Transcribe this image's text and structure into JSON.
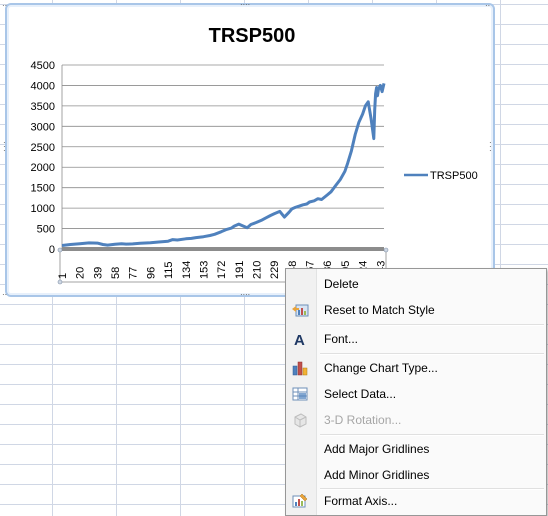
{
  "chart": {
    "title": "TRSP500",
    "legend_label": "TRSP500",
    "series_color": "#4f81bd",
    "y_ticks": [
      "4500",
      "4000",
      "3500",
      "3000",
      "2500",
      "2000",
      "1500",
      "1000",
      "500",
      "0"
    ],
    "x_ticks": [
      "1",
      "20",
      "39",
      "58",
      "77",
      "96",
      "115",
      "134",
      "153",
      "172",
      "191",
      "210",
      "229",
      "248",
      "267",
      "286",
      "305",
      "324",
      "343"
    ]
  },
  "chart_data": {
    "type": "line",
    "title": "TRSP500",
    "xlabel": "",
    "ylabel": "",
    "ylim": [
      0,
      4500
    ],
    "grid": true,
    "legend": "right",
    "series": [
      {
        "name": "TRSP500",
        "x": [
          1,
          10,
          20,
          30,
          39,
          45,
          50,
          58,
          65,
          70,
          77,
          85,
          96,
          105,
          115,
          120,
          125,
          134,
          140,
          145,
          153,
          160,
          165,
          172,
          178,
          183,
          186,
          191,
          195,
          200,
          204,
          210,
          215,
          220,
          225,
          229,
          235,
          240,
          245,
          248,
          252,
          256,
          260,
          264,
          267,
          272,
          276,
          280,
          286,
          290,
          295,
          300,
          305,
          308,
          312,
          316,
          320,
          324,
          327,
          330,
          333,
          336,
          337,
          338,
          339,
          340,
          341,
          343,
          345,
          347
        ],
        "y": [
          85,
          110,
          130,
          150,
          145,
          110,
          95,
          115,
          130,
          120,
          125,
          140,
          155,
          170,
          190,
          230,
          220,
          250,
          260,
          280,
          300,
          330,
          360,
          420,
          480,
          510,
          560,
          610,
          570,
          520,
          600,
          650,
          700,
          760,
          820,
          860,
          920,
          780,
          900,
          980,
          1020,
          1050,
          1080,
          1100,
          1150,
          1180,
          1230,
          1210,
          1320,
          1400,
          1550,
          1700,
          1900,
          2100,
          2400,
          2800,
          3100,
          3300,
          3500,
          3600,
          3200,
          2700,
          3400,
          3800,
          3950,
          3750,
          3900,
          4000,
          3850,
          4050
        ]
      }
    ]
  },
  "menu": {
    "items": [
      {
        "label": "Delete",
        "icon": "none",
        "disabled": false
      },
      {
        "label": "Reset to Match Style",
        "icon": "reset-style-icon",
        "disabled": false
      },
      {
        "label": "Font...",
        "icon": "font-icon",
        "disabled": false
      },
      {
        "label": "Change Chart Type...",
        "icon": "chart-type-icon",
        "disabled": false
      },
      {
        "label": "Select Data...",
        "icon": "select-data-icon",
        "disabled": false
      },
      {
        "label": "3-D Rotation...",
        "icon": "rotation-3d-icon",
        "disabled": true
      },
      {
        "label": "Add Major Gridlines",
        "icon": "none",
        "disabled": false
      },
      {
        "label": "Add Minor Gridlines",
        "icon": "none",
        "disabled": false
      },
      {
        "label": "Format Axis...",
        "icon": "format-axis-icon",
        "disabled": false
      }
    ]
  }
}
